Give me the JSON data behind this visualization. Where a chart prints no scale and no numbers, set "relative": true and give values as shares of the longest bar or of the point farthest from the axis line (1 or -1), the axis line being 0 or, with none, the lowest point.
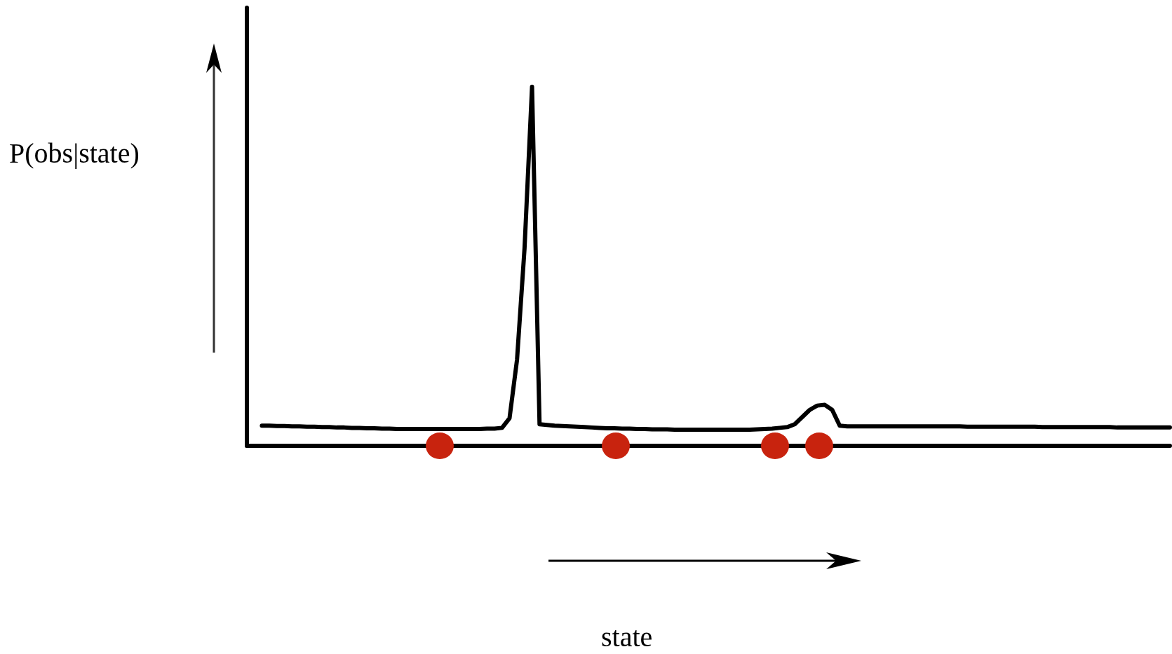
{
  "chart_data": {
    "type": "line",
    "relative": true,
    "ylabel": "P(obs|state)",
    "annotations": [
      "state"
    ],
    "grid": false,
    "categories": [
      null,
      null,
      null,
      null,
      null,
      null,
      null,
      null,
      null,
      null,
      null,
      null,
      null,
      null,
      null,
      null,
      null,
      null,
      null,
      null,
      null,
      null,
      null,
      null,
      null,
      null,
      null,
      null,
      null,
      null,
      null,
      null,
      null,
      null,
      null,
      null,
      null,
      null,
      null,
      null,
      null,
      null,
      null,
      null,
      null,
      null,
      null,
      null,
      null,
      null,
      null,
      null,
      null,
      null,
      null,
      null,
      null,
      null,
      null,
      null,
      null,
      null,
      null,
      null,
      null,
      null,
      null,
      null,
      null,
      null,
      null,
      null,
      null,
      null,
      null,
      null,
      null,
      null,
      null,
      null,
      null,
      null,
      null,
      null,
      null,
      null,
      null,
      null,
      null,
      null,
      null,
      null,
      null,
      null,
      null,
      null,
      null,
      null,
      null,
      null,
      null,
      null,
      null,
      null,
      null,
      null,
      null,
      null,
      null,
      null,
      null,
      null,
      null,
      null,
      null,
      null,
      null,
      null,
      null,
      null,
      null,
      null,
      null,
      null
    ],
    "series": [
      {
        "color": "#000000",
        "marker": "none",
        "values": [
          null,
          null,
          0.056,
          0.056,
          0.055,
          0.055,
          0.054,
          0.054,
          0.053,
          0.053,
          0.052,
          0.052,
          0.051,
          0.051,
          0.05,
          0.05,
          0.049,
          0.049,
          0.048,
          0.048,
          0.047,
          0.047,
          0.047,
          0.047,
          0.047,
          0.047,
          0.047,
          0.047,
          0.047,
          0.047,
          0.047,
          0.047,
          0.048,
          0.048,
          0.05,
          0.077,
          0.24,
          0.55,
          1,
          0.06,
          0.058,
          0.056,
          0.055,
          0.054,
          0.053,
          0.052,
          0.051,
          0.05,
          0.049,
          0.049,
          0.048,
          0.048,
          0.047,
          0.047,
          0.046,
          0.046,
          0.046,
          0.045,
          0.045,
          0.045,
          0.045,
          0.045,
          0.045,
          0.045,
          0.045,
          0.045,
          0.045,
          0.045,
          0.046,
          0.047,
          0.048,
          0.05,
          0.052,
          0.06,
          0.08,
          0.1,
          0.112,
          0.114,
          0.1,
          0.056,
          0.054,
          0.054,
          0.054,
          0.054,
          0.054,
          0.054,
          0.054,
          0.054,
          0.054,
          0.054,
          0.054,
          0.054,
          0.054,
          0.054,
          0.054,
          0.054,
          0.053,
          0.053,
          0.053,
          0.053,
          0.053,
          0.053,
          0.053,
          0.053,
          0.053,
          0.053,
          0.052,
          0.052,
          0.052,
          0.052,
          0.052,
          0.052,
          0.052,
          0.052,
          0.052,
          0.052,
          0.051,
          0.051,
          0.051,
          0.051,
          0.051,
          0.051,
          0.051,
          0.051
        ]
      }
    ]
  }
}
